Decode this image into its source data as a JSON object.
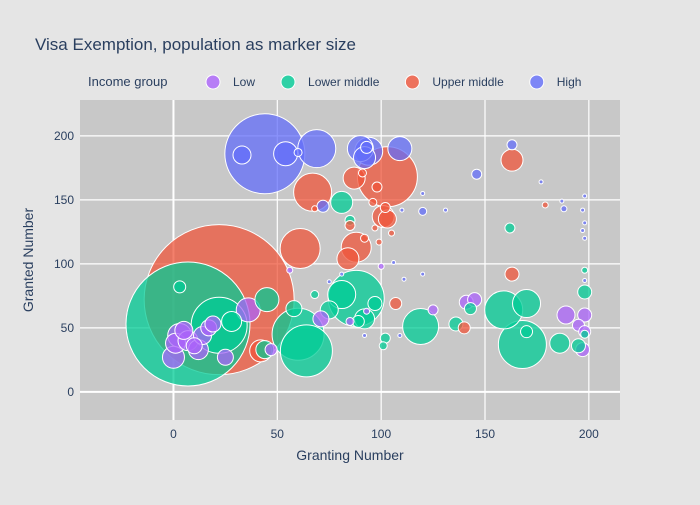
{
  "chart_data": {
    "type": "scatter",
    "title": "Visa Exemption, population as marker size",
    "xlabel": "Granting Number",
    "ylabel": "Granted Number",
    "xlim": [
      -45,
      215
    ],
    "ylim": [
      -22,
      228
    ],
    "xticks": [
      0,
      50,
      100,
      150,
      200
    ],
    "yticks": [
      0,
      50,
      100,
      150,
      200
    ],
    "grid": true,
    "legend": {
      "title": "Income group",
      "placement": "top"
    },
    "series": [
      {
        "name": "Low",
        "color": "#ab63fa",
        "points": [
          {
            "x": 0,
            "y": 27,
            "size": 11
          },
          {
            "x": 1,
            "y": 38,
            "size": 10
          },
          {
            "x": 3,
            "y": 44,
            "size": 12
          },
          {
            "x": 5,
            "y": 48,
            "size": 9
          },
          {
            "x": 7,
            "y": 40,
            "size": 10
          },
          {
            "x": 10,
            "y": 36,
            "size": 8
          },
          {
            "x": 12,
            "y": 33,
            "size": 10
          },
          {
            "x": 14,
            "y": 44,
            "size": 9
          },
          {
            "x": 17,
            "y": 50,
            "size": 8
          },
          {
            "x": 19,
            "y": 53,
            "size": 8
          },
          {
            "x": 25,
            "y": 27,
            "size": 8
          },
          {
            "x": 36,
            "y": 64,
            "size": 12
          },
          {
            "x": 47,
            "y": 33,
            "size": 6
          },
          {
            "x": 56,
            "y": 95,
            "size": 3
          },
          {
            "x": 71,
            "y": 57,
            "size": 8
          },
          {
            "x": 85,
            "y": 55,
            "size": 4
          },
          {
            "x": 93,
            "y": 63,
            "size": 3
          },
          {
            "x": 100,
            "y": 98,
            "size": 3
          },
          {
            "x": 125,
            "y": 64,
            "size": 5
          },
          {
            "x": 141,
            "y": 70,
            "size": 7
          },
          {
            "x": 145,
            "y": 72,
            "size": 7
          },
          {
            "x": 189,
            "y": 60,
            "size": 9
          },
          {
            "x": 195,
            "y": 52,
            "size": 6
          },
          {
            "x": 197,
            "y": 33,
            "size": 7
          },
          {
            "x": 198,
            "y": 47,
            "size": 6
          },
          {
            "x": 198,
            "y": 60,
            "size": 7
          }
        ]
      },
      {
        "name": "Lower middle",
        "color": "#00cc96",
        "points": [
          {
            "x": 7,
            "y": 53,
            "size": 62
          },
          {
            "x": 22,
            "y": 52,
            "size": 28
          },
          {
            "x": 3,
            "y": 82,
            "size": 6
          },
          {
            "x": 28,
            "y": 55,
            "size": 10
          },
          {
            "x": 45,
            "y": 72,
            "size": 12
          },
          {
            "x": 44,
            "y": 33,
            "size": 9
          },
          {
            "x": 60,
            "y": 45,
            "size": 26
          },
          {
            "x": 64,
            "y": 32,
            "size": 26
          },
          {
            "x": 58,
            "y": 65,
            "size": 8
          },
          {
            "x": 68,
            "y": 76,
            "size": 4
          },
          {
            "x": 75,
            "y": 64,
            "size": 9
          },
          {
            "x": 81,
            "y": 76,
            "size": 14
          },
          {
            "x": 88,
            "y": 73,
            "size": 28
          },
          {
            "x": 81,
            "y": 148,
            "size": 11
          },
          {
            "x": 85,
            "y": 134,
            "size": 5
          },
          {
            "x": 89,
            "y": 55,
            "size": 6
          },
          {
            "x": 92,
            "y": 57,
            "size": 10
          },
          {
            "x": 97,
            "y": 69,
            "size": 7
          },
          {
            "x": 102,
            "y": 42,
            "size": 5
          },
          {
            "x": 101,
            "y": 36,
            "size": 4
          },
          {
            "x": 119,
            "y": 51,
            "size": 18
          },
          {
            "x": 136,
            "y": 53,
            "size": 7
          },
          {
            "x": 143,
            "y": 65,
            "size": 6
          },
          {
            "x": 159,
            "y": 64,
            "size": 19
          },
          {
            "x": 162,
            "y": 128,
            "size": 5
          },
          {
            "x": 168,
            "y": 37,
            "size": 24
          },
          {
            "x": 170,
            "y": 69,
            "size": 14
          },
          {
            "x": 170,
            "y": 47,
            "size": 6
          },
          {
            "x": 186,
            "y": 38,
            "size": 10
          },
          {
            "x": 195,
            "y": 36,
            "size": 7
          },
          {
            "x": 198,
            "y": 78,
            "size": 7
          },
          {
            "x": 198,
            "y": 95,
            "size": 3
          },
          {
            "x": 198,
            "y": 45,
            "size": 4
          }
        ]
      },
      {
        "name": "Upper middle",
        "color": "#ef553b",
        "points": [
          {
            "x": 22,
            "y": 72,
            "size": 75
          },
          {
            "x": 42,
            "y": 32,
            "size": 11
          },
          {
            "x": 61,
            "y": 112,
            "size": 20
          },
          {
            "x": 67,
            "y": 156,
            "size": 19
          },
          {
            "x": 68,
            "y": 143,
            "size": 3
          },
          {
            "x": 84,
            "y": 104,
            "size": 11
          },
          {
            "x": 85,
            "y": 130,
            "size": 5
          },
          {
            "x": 87,
            "y": 167,
            "size": 11
          },
          {
            "x": 88,
            "y": 113,
            "size": 15
          },
          {
            "x": 91,
            "y": 171,
            "size": 4
          },
          {
            "x": 92,
            "y": 120,
            "size": 4
          },
          {
            "x": 96,
            "y": 148,
            "size": 4
          },
          {
            "x": 97,
            "y": 128,
            "size": 3
          },
          {
            "x": 98,
            "y": 160,
            "size": 5
          },
          {
            "x": 99,
            "y": 117,
            "size": 3
          },
          {
            "x": 101,
            "y": 137,
            "size": 11
          },
          {
            "x": 103,
            "y": 168,
            "size": 30
          },
          {
            "x": 103,
            "y": 135,
            "size": 9
          },
          {
            "x": 102,
            "y": 144,
            "size": 5
          },
          {
            "x": 107,
            "y": 69,
            "size": 6
          },
          {
            "x": 105,
            "y": 124,
            "size": 3
          },
          {
            "x": 140,
            "y": 50,
            "size": 6
          },
          {
            "x": 163,
            "y": 181,
            "size": 11
          },
          {
            "x": 163,
            "y": 92,
            "size": 7
          },
          {
            "x": 179,
            "y": 146,
            "size": 3
          }
        ]
      },
      {
        "name": "High",
        "color": "#636efa",
        "points": [
          {
            "x": 44,
            "y": 186,
            "size": 40
          },
          {
            "x": 33,
            "y": 185,
            "size": 9
          },
          {
            "x": 54,
            "y": 186,
            "size": 12
          },
          {
            "x": 60,
            "y": 187,
            "size": 4
          },
          {
            "x": 69,
            "y": 190,
            "size": 19
          },
          {
            "x": 72,
            "y": 145,
            "size": 6
          },
          {
            "x": 90,
            "y": 190,
            "size": 13
          },
          {
            "x": 92,
            "y": 183,
            "size": 11
          },
          {
            "x": 94,
            "y": 188,
            "size": 14
          },
          {
            "x": 109,
            "y": 190,
            "size": 12
          },
          {
            "x": 93,
            "y": 191,
            "size": 6
          },
          {
            "x": 120,
            "y": 141,
            "size": 4
          },
          {
            "x": 146,
            "y": 170,
            "size": 5
          },
          {
            "x": 163,
            "y": 193,
            "size": 5
          },
          {
            "x": 188,
            "y": 143,
            "size": 3
          },
          {
            "x": 187,
            "y": 149,
            "size": 2
          },
          {
            "x": 197,
            "y": 142,
            "size": 2
          },
          {
            "x": 198,
            "y": 120,
            "size": 2
          },
          {
            "x": 198,
            "y": 153,
            "size": 2
          },
          {
            "x": 131,
            "y": 142,
            "size": 2
          },
          {
            "x": 110,
            "y": 142,
            "size": 2
          },
          {
            "x": 120,
            "y": 155,
            "size": 2
          },
          {
            "x": 120,
            "y": 92,
            "size": 2
          },
          {
            "x": 111,
            "y": 88,
            "size": 2
          },
          {
            "x": 177,
            "y": 164,
            "size": 2
          },
          {
            "x": 198,
            "y": 132,
            "size": 2
          },
          {
            "x": 198,
            "y": 87,
            "size": 2
          },
          {
            "x": 197,
            "y": 126,
            "size": 2
          },
          {
            "x": 92,
            "y": 44,
            "size": 2
          },
          {
            "x": 106,
            "y": 101,
            "size": 2
          },
          {
            "x": 75,
            "y": 86,
            "size": 2
          },
          {
            "x": 81,
            "y": 92,
            "size": 2
          },
          {
            "x": 109,
            "y": 44,
            "size": 2
          }
        ]
      }
    ]
  }
}
